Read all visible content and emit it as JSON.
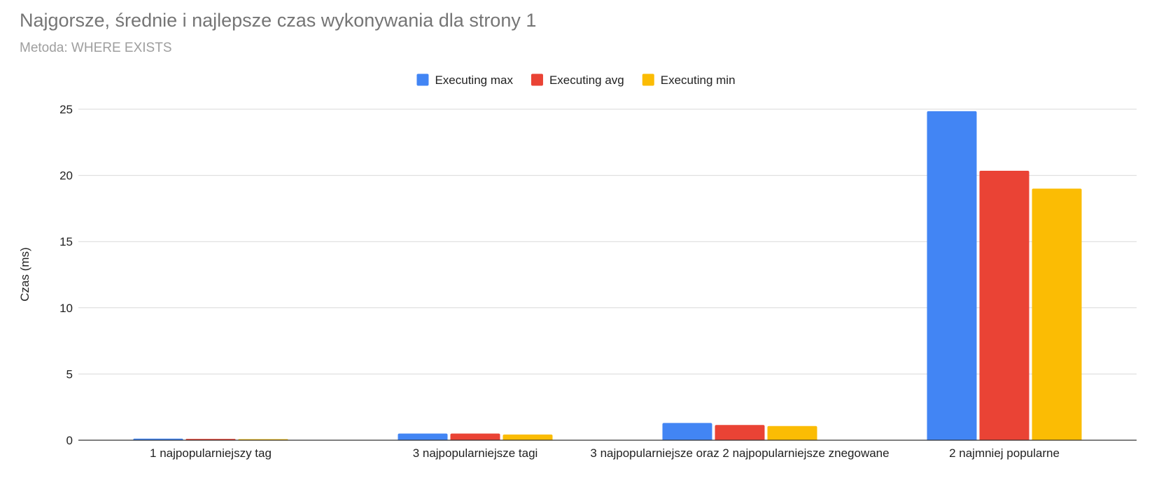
{
  "chart_data": {
    "type": "bar",
    "title": "Najgorsze, średnie i najlepsze czas wykonywania dla strony 1",
    "subtitle": "Metoda: WHERE EXISTS",
    "xlabel": "",
    "ylabel": "Czas (ms)",
    "ylim": [
      0,
      25
    ],
    "yticks": [
      "0",
      "5",
      "10",
      "15",
      "20",
      "25"
    ],
    "grid": true,
    "legend_position": "top",
    "categories": [
      "1 najpopularniejszy tag",
      "3 najpopularniejsze tagi",
      "3 najpopularniejsze oraz 2 najpopularniejsze znegowane",
      "2 najmniej popularne"
    ],
    "series": [
      {
        "name": "Executing max",
        "color": "#4285f4",
        "values": [
          0.12,
          0.5,
          1.3,
          24.85
        ]
      },
      {
        "name": "Executing avg",
        "color": "#ea4335",
        "values": [
          0.1,
          0.5,
          1.15,
          20.35
        ]
      },
      {
        "name": "Executing min",
        "color": "#fbbc04",
        "values": [
          0.08,
          0.43,
          1.07,
          19.0
        ]
      }
    ]
  }
}
